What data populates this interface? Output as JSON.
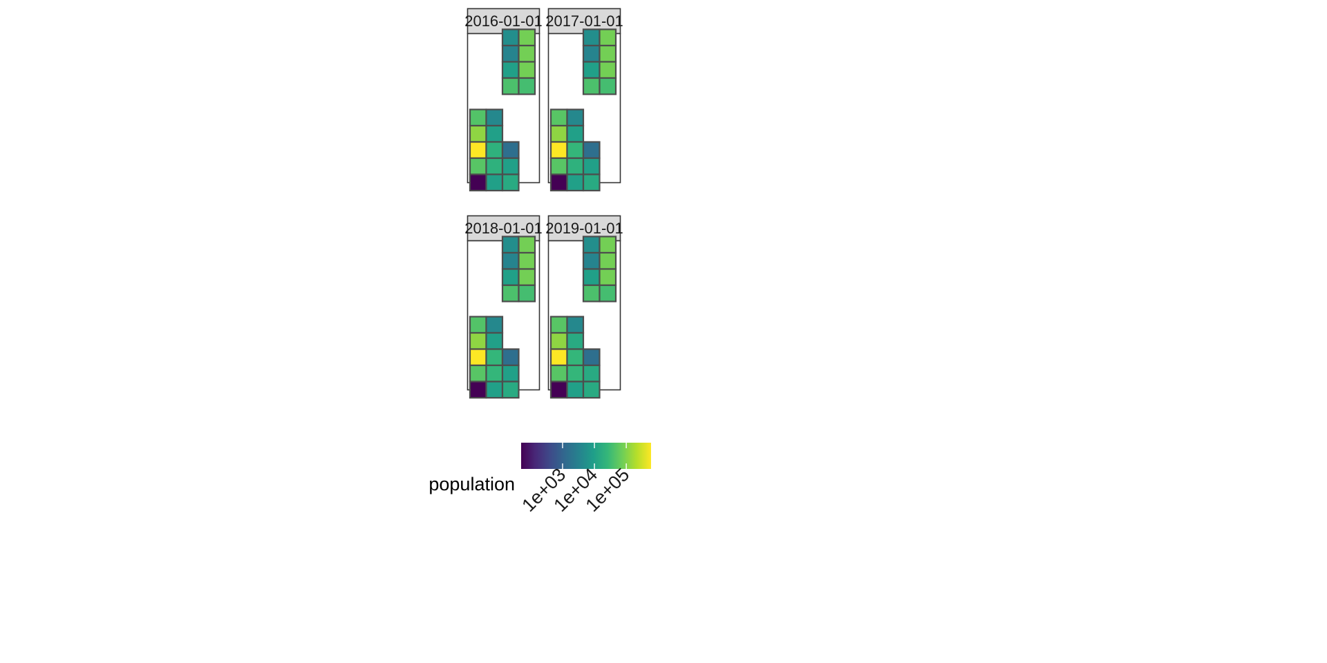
{
  "chart_data": {
    "type": "heatmap",
    "title": "",
    "xlabel": "",
    "ylabel": "",
    "facet_variable": "date",
    "facets": [
      {
        "label": "2016-01-01",
        "cells": [
          {
            "col": 3,
            "row": 9,
            "population": 5000
          },
          {
            "col": 4,
            "row": 9,
            "population": 80000
          },
          {
            "col": 3,
            "row": 8,
            "population": 3500
          },
          {
            "col": 4,
            "row": 8,
            "population": 80000
          },
          {
            "col": 3,
            "row": 7,
            "population": 10000
          },
          {
            "col": 4,
            "row": 7,
            "population": 80000
          },
          {
            "col": 3,
            "row": 6,
            "population": 40000
          },
          {
            "col": 4,
            "row": 6,
            "population": 35000
          },
          {
            "col": 1,
            "row": 5,
            "population": 45000
          },
          {
            "col": 2,
            "row": 5,
            "population": 4000
          },
          {
            "col": 1,
            "row": 4,
            "population": 120000
          },
          {
            "col": 2,
            "row": 4,
            "population": 10000
          },
          {
            "col": 1,
            "row": 3,
            "population": 600000
          },
          {
            "col": 2,
            "row": 3,
            "population": 20000
          },
          {
            "col": 3,
            "row": 3,
            "population": 1500
          },
          {
            "col": 1,
            "row": 2,
            "population": 50000
          },
          {
            "col": 2,
            "row": 2,
            "population": 20000
          },
          {
            "col": 3,
            "row": 2,
            "population": 10000
          },
          {
            "col": 1,
            "row": 1,
            "population": 50
          },
          {
            "col": 2,
            "row": 1,
            "population": 10000
          },
          {
            "col": 3,
            "row": 1,
            "population": 15000
          }
        ]
      },
      {
        "label": "2017-01-01",
        "cells": [
          {
            "col": 3,
            "row": 9,
            "population": 5000
          },
          {
            "col": 4,
            "row": 9,
            "population": 80000
          },
          {
            "col": 3,
            "row": 8,
            "population": 3500
          },
          {
            "col": 4,
            "row": 8,
            "population": 80000
          },
          {
            "col": 3,
            "row": 7,
            "population": 10000
          },
          {
            "col": 4,
            "row": 7,
            "population": 80000
          },
          {
            "col": 3,
            "row": 6,
            "population": 40000
          },
          {
            "col": 4,
            "row": 6,
            "population": 35000
          },
          {
            "col": 1,
            "row": 5,
            "population": 50000
          },
          {
            "col": 2,
            "row": 5,
            "population": 4000
          },
          {
            "col": 1,
            "row": 4,
            "population": 120000
          },
          {
            "col": 2,
            "row": 4,
            "population": 10000
          },
          {
            "col": 1,
            "row": 3,
            "population": 600000
          },
          {
            "col": 2,
            "row": 3,
            "population": 25000
          },
          {
            "col": 3,
            "row": 3,
            "population": 1500
          },
          {
            "col": 1,
            "row": 2,
            "population": 50000
          },
          {
            "col": 2,
            "row": 2,
            "population": 20000
          },
          {
            "col": 3,
            "row": 2,
            "population": 10000
          },
          {
            "col": 1,
            "row": 1,
            "population": 50
          },
          {
            "col": 2,
            "row": 1,
            "population": 10000
          },
          {
            "col": 3,
            "row": 1,
            "population": 15000
          }
        ]
      },
      {
        "label": "2018-01-01",
        "cells": [
          {
            "col": 3,
            "row": 9,
            "population": 5000
          },
          {
            "col": 4,
            "row": 9,
            "population": 80000
          },
          {
            "col": 3,
            "row": 8,
            "population": 3500
          },
          {
            "col": 4,
            "row": 8,
            "population": 80000
          },
          {
            "col": 3,
            "row": 7,
            "population": 10000
          },
          {
            "col": 4,
            "row": 7,
            "population": 80000
          },
          {
            "col": 3,
            "row": 6,
            "population": 40000
          },
          {
            "col": 4,
            "row": 6,
            "population": 35000
          },
          {
            "col": 1,
            "row": 5,
            "population": 45000
          },
          {
            "col": 2,
            "row": 5,
            "population": 4000
          },
          {
            "col": 1,
            "row": 4,
            "population": 120000
          },
          {
            "col": 2,
            "row": 4,
            "population": 10000
          },
          {
            "col": 1,
            "row": 3,
            "population": 600000
          },
          {
            "col": 2,
            "row": 3,
            "population": 25000
          },
          {
            "col": 3,
            "row": 3,
            "population": 1500
          },
          {
            "col": 1,
            "row": 2,
            "population": 50000
          },
          {
            "col": 2,
            "row": 2,
            "population": 25000
          },
          {
            "col": 3,
            "row": 2,
            "population": 10000
          },
          {
            "col": 1,
            "row": 1,
            "population": 50
          },
          {
            "col": 2,
            "row": 1,
            "population": 10000
          },
          {
            "col": 3,
            "row": 1,
            "population": 15000
          }
        ]
      },
      {
        "label": "2019-01-01",
        "cells": [
          {
            "col": 3,
            "row": 9,
            "population": 5000
          },
          {
            "col": 4,
            "row": 9,
            "population": 80000
          },
          {
            "col": 3,
            "row": 8,
            "population": 3500
          },
          {
            "col": 4,
            "row": 8,
            "population": 80000
          },
          {
            "col": 3,
            "row": 7,
            "population": 10000
          },
          {
            "col": 4,
            "row": 7,
            "population": 80000
          },
          {
            "col": 3,
            "row": 6,
            "population": 40000
          },
          {
            "col": 4,
            "row": 6,
            "population": 35000
          },
          {
            "col": 1,
            "row": 5,
            "population": 50000
          },
          {
            "col": 2,
            "row": 5,
            "population": 4000
          },
          {
            "col": 1,
            "row": 4,
            "population": 120000
          },
          {
            "col": 2,
            "row": 4,
            "population": 15000
          },
          {
            "col": 1,
            "row": 3,
            "population": 600000
          },
          {
            "col": 2,
            "row": 3,
            "population": 25000
          },
          {
            "col": 3,
            "row": 3,
            "population": 1500
          },
          {
            "col": 1,
            "row": 2,
            "population": 50000
          },
          {
            "col": 2,
            "row": 2,
            "population": 25000
          },
          {
            "col": 3,
            "row": 2,
            "population": 15000
          },
          {
            "col": 1,
            "row": 1,
            "population": 50
          },
          {
            "col": 2,
            "row": 1,
            "population": 10000
          },
          {
            "col": 3,
            "row": 1,
            "population": 15000
          }
        ]
      }
    ],
    "legend": {
      "title": "population",
      "position": "bottom",
      "scale": "log10",
      "palette": "viridis",
      "range": [
        50,
        600000
      ],
      "ticks": [
        {
          "value": 1000,
          "label": "1e+03"
        },
        {
          "value": 10000,
          "label": "1e+04"
        },
        {
          "value": 100000,
          "label": "1e+05"
        }
      ]
    },
    "colors": {
      "strip_fill": "#d9d9d9",
      "panel_border": "#333333",
      "cell_border": "#4d4d4d",
      "viridis_stops": [
        "#440154",
        "#482878",
        "#3e4a89",
        "#31688e",
        "#26828e",
        "#1f9e89",
        "#35b779",
        "#6ece58",
        "#b5de2b",
        "#fde725"
      ]
    }
  }
}
